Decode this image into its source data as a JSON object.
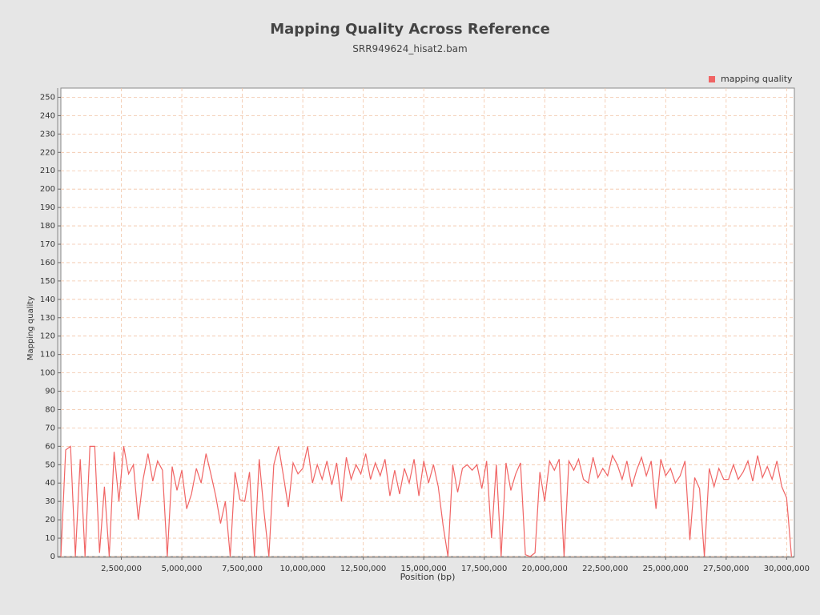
{
  "chart_data": {
    "type": "line",
    "title": "Mapping Quality Across Reference",
    "subtitle": "SRR949624_hisat2.bam",
    "xlabel": "Position (bp)",
    "ylabel": "Mapping quality",
    "legend_position": "top-right",
    "grid": true,
    "xlim": [
      0,
      30320000
    ],
    "ylim": [
      0,
      255
    ],
    "xticks": [
      {
        "value": 2500000,
        "label": "2,500,000"
      },
      {
        "value": 5000000,
        "label": "5,000,000"
      },
      {
        "value": 7500000,
        "label": "7,500,000"
      },
      {
        "value": 10000000,
        "label": "10,000,000"
      },
      {
        "value": 12500000,
        "label": "12,500,000"
      },
      {
        "value": 15000000,
        "label": "15,000,000"
      },
      {
        "value": 17500000,
        "label": "17,500,000"
      },
      {
        "value": 20000000,
        "label": "20,000,000"
      },
      {
        "value": 22500000,
        "label": "22,500,000"
      },
      {
        "value": 25000000,
        "label": "25,000,000"
      },
      {
        "value": 27500000,
        "label": "27,500,000"
      },
      {
        "value": 30000000,
        "label": "30,000,000"
      }
    ],
    "yticks": [
      0,
      10,
      20,
      30,
      40,
      50,
      60,
      70,
      80,
      90,
      100,
      110,
      120,
      130,
      140,
      150,
      160,
      170,
      180,
      190,
      200,
      210,
      220,
      230,
      240,
      250
    ],
    "x": [
      0,
      200000,
      400000,
      600000,
      800000,
      1000000,
      1200000,
      1400000,
      1600000,
      1800000,
      2000000,
      2200000,
      2400000,
      2600000,
      2800000,
      3000000,
      3200000,
      3400000,
      3600000,
      3800000,
      4000000,
      4200000,
      4400000,
      4600000,
      4800000,
      5000000,
      5200000,
      5400000,
      5600000,
      5800000,
      6000000,
      6200000,
      6400000,
      6600000,
      6800000,
      7000000,
      7200000,
      7400000,
      7600000,
      7800000,
      8000000,
      8200000,
      8400000,
      8600000,
      8800000,
      9000000,
      9200000,
      9400000,
      9600000,
      9800000,
      10000000,
      10200000,
      10400000,
      10600000,
      10800000,
      11000000,
      11200000,
      11400000,
      11600000,
      11800000,
      12000000,
      12200000,
      12400000,
      12600000,
      12800000,
      13000000,
      13200000,
      13400000,
      13600000,
      13800000,
      14000000,
      14200000,
      14400000,
      14600000,
      14800000,
      15000000,
      15200000,
      15400000,
      15600000,
      15800000,
      16000000,
      16200000,
      16400000,
      16600000,
      16800000,
      17000000,
      17200000,
      17400000,
      17600000,
      17800000,
      18000000,
      18200000,
      18400000,
      18600000,
      18800000,
      19000000,
      19200000,
      19400000,
      19600000,
      19800000,
      20000000,
      20200000,
      20400000,
      20600000,
      20800000,
      21000000,
      21200000,
      21400000,
      21600000,
      21800000,
      22000000,
      22200000,
      22400000,
      22600000,
      22800000,
      23000000,
      23200000,
      23400000,
      23600000,
      23800000,
      24000000,
      24200000,
      24400000,
      24600000,
      24800000,
      25000000,
      25200000,
      25400000,
      25600000,
      25800000,
      26000000,
      26200000,
      26400000,
      26600000,
      26800000,
      27000000,
      27200000,
      27400000,
      27600000,
      27800000,
      28000000,
      28200000,
      28400000,
      28600000,
      28800000,
      29000000,
      29200000,
      29400000,
      29600000,
      29800000,
      30000000,
      30200000
    ],
    "series": [
      {
        "name": "mapping quality",
        "color": "#f06464",
        "values": [
          0,
          58,
          60,
          0,
          53,
          0,
          60,
          60,
          2,
          38,
          0,
          57,
          30,
          60,
          45,
          50,
          20,
          42,
          56,
          41,
          52,
          47,
          0,
          49,
          36,
          47,
          26,
          34,
          48,
          40,
          56,
          45,
          33,
          18,
          30,
          0,
          46,
          31,
          30,
          46,
          0,
          53,
          24,
          0,
          50,
          60,
          44,
          27,
          51,
          45,
          48,
          60,
          40,
          50,
          42,
          52,
          39,
          51,
          30,
          54,
          42,
          50,
          45,
          56,
          42,
          51,
          44,
          53,
          33,
          47,
          34,
          48,
          40,
          53,
          33,
          52,
          40,
          50,
          38,
          17,
          0,
          50,
          35,
          48,
          50,
          47,
          50,
          37,
          52,
          10,
          50,
          0,
          51,
          36,
          45,
          51,
          1,
          0,
          2,
          46,
          30,
          52,
          47,
          53,
          0,
          52,
          47,
          53,
          42,
          40,
          54,
          43,
          48,
          44,
          55,
          50,
          42,
          52,
          38,
          47,
          54,
          44,
          52,
          26,
          53,
          44,
          48,
          40,
          44,
          52,
          9,
          43,
          37,
          0,
          48,
          38,
          48,
          42,
          42,
          50,
          42,
          46,
          52,
          41,
          55,
          43,
          49,
          42,
          52,
          38,
          32,
          0
        ]
      }
    ]
  }
}
